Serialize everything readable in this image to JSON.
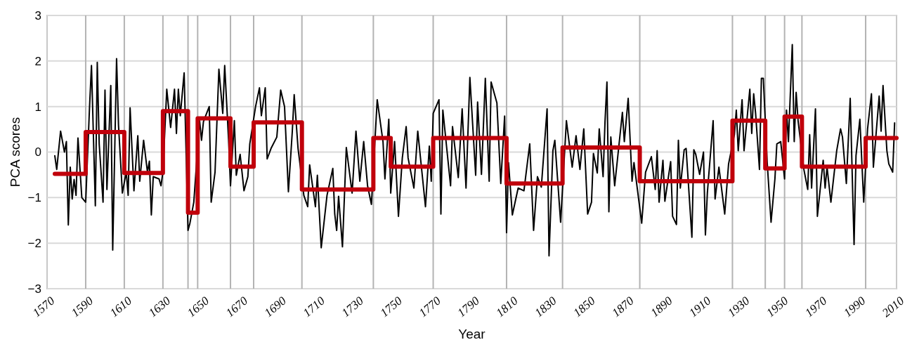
{
  "chart_data": {
    "type": "line",
    "xlabel": "Year",
    "ylabel": "PCA scores",
    "xlim": [
      1570,
      2010
    ],
    "ylim": [
      -3,
      3
    ],
    "xticks": [
      1570,
      1590,
      1610,
      1630,
      1650,
      1670,
      1690,
      1710,
      1730,
      1750,
      1770,
      1790,
      1810,
      1830,
      1850,
      1870,
      1890,
      1910,
      1930,
      1950,
      1970,
      1990,
      2010
    ],
    "yticks": [
      {
        "value": -3,
        "label": "−3"
      },
      {
        "value": -2,
        "label": "−2"
      },
      {
        "value": -1,
        "label": "−1"
      },
      0,
      1,
      2,
      3
    ],
    "grid": "y",
    "marker": "none",
    "ref_lines": [
      {
        "axis": "x",
        "value": 1590,
        "color": "#b3b3b3"
      },
      {
        "axis": "x",
        "value": 1610,
        "color": "#b3b3b3"
      },
      {
        "axis": "x",
        "value": 1630,
        "color": "#b3b3b3"
      },
      {
        "axis": "x",
        "value": 1643,
        "color": "#b3b3b3"
      },
      {
        "axis": "x",
        "value": 1648,
        "color": "#b3b3b3"
      },
      {
        "axis": "x",
        "value": 1665,
        "color": "#b3b3b3"
      },
      {
        "axis": "x",
        "value": 1677,
        "color": "#b3b3b3"
      },
      {
        "axis": "x",
        "value": 1702,
        "color": "#b3b3b3"
      },
      {
        "axis": "x",
        "value": 1739,
        "color": "#b3b3b3"
      },
      {
        "axis": "x",
        "value": 1770,
        "color": "#b3b3b3"
      },
      {
        "axis": "x",
        "value": 1808,
        "color": "#b3b3b3"
      },
      {
        "axis": "x",
        "value": 1837,
        "color": "#b3b3b3"
      },
      {
        "axis": "x",
        "value": 1877,
        "color": "#b3b3b3"
      },
      {
        "axis": "x",
        "value": 1925,
        "color": "#b3b3b3"
      },
      {
        "axis": "x",
        "value": 1942,
        "color": "#b3b3b3"
      },
      {
        "axis": "x",
        "value": 1952,
        "color": "#b3b3b3"
      },
      {
        "axis": "x",
        "value": 1961,
        "color": "#b3b3b3"
      },
      {
        "axis": "x",
        "value": 1994,
        "color": "#b3b3b3"
      }
    ],
    "series": [
      {
        "color": "#000000",
        "x": [
          1574,
          1575,
          1577,
          1579,
          1580,
          1581,
          1582,
          1583,
          1584,
          1585,
          1586,
          1588,
          1590,
          1592,
          1593,
          1595,
          1596,
          1597,
          1599,
          1600,
          1601,
          1603,
          1604,
          1606,
          1607,
          1609,
          1611,
          1612,
          1613,
          1615,
          1617,
          1618,
          1620,
          1622,
          1623,
          1624,
          1625,
          1628,
          1629,
          1630,
          1632,
          1634,
          1636,
          1637,
          1638,
          1639,
          1641,
          1643,
          1644,
          1646,
          1649,
          1650,
          1651,
          1654,
          1655,
          1657,
          1659,
          1661,
          1662,
          1664,
          1665,
          1667,
          1668,
          1670,
          1672,
          1674,
          1675,
          1678,
          1680,
          1681,
          1683,
          1684,
          1686,
          1689,
          1691,
          1693,
          1695,
          1697,
          1698,
          1700,
          1703,
          1705,
          1706,
          1709,
          1710,
          1712,
          1715,
          1718,
          1719,
          1720,
          1721,
          1723,
          1725,
          1728,
          1730,
          1732,
          1734,
          1736,
          1738,
          1741,
          1744,
          1745,
          1747,
          1748,
          1750,
          1752,
          1754,
          1756,
          1757,
          1760,
          1762,
          1766,
          1768,
          1769,
          1770,
          1773,
          1774,
          1775,
          1779,
          1780,
          1783,
          1785,
          1787,
          1789,
          1792,
          1793,
          1795,
          1797,
          1799,
          1800,
          1803,
          1805,
          1807,
          1808,
          1809,
          1811,
          1814,
          1817,
          1820,
          1822,
          1824,
          1826,
          1829,
          1830,
          1832,
          1833,
          1836,
          1839,
          1842,
          1844,
          1846,
          1848,
          1850,
          1852,
          1853,
          1855,
          1856,
          1858,
          1859,
          1860,
          1861,
          1862,
          1864,
          1868,
          1869,
          1871,
          1873,
          1874,
          1878,
          1880,
          1883,
          1885,
          1886,
          1887,
          1889,
          1890,
          1893,
          1894,
          1896,
          1897,
          1898,
          1900,
          1901,
          1904,
          1905,
          1906,
          1908,
          1910,
          1911,
          1912,
          1915,
          1916,
          1918,
          1921,
          1923,
          1926,
          1927,
          1928,
          1930,
          1931,
          1934,
          1935,
          1936,
          1937,
          1939,
          1940,
          1941,
          1943,
          1945,
          1947,
          1948,
          1950,
          1952,
          1953,
          1954,
          1956,
          1957,
          1958,
          1959,
          1962,
          1964,
          1965,
          1966,
          1968,
          1969,
          1972,
          1973,
          1974,
          1976,
          1979,
          1981,
          1982,
          1984,
          1986,
          1988,
          1989,
          1991,
          1993,
          1995,
          1997,
          1998,
          2001,
          2002,
          2003,
          2005,
          2006,
          2008,
          2009
        ],
        "values": [
          -0.08,
          -0.38,
          0.46,
          0,
          0.23,
          -1.6,
          -0.33,
          -1.03,
          -0.6,
          -0.95,
          0.31,
          -1.0,
          -1.1,
          1.0,
          1.9,
          -1.18,
          1.97,
          0.18,
          -1.1,
          1.36,
          -0.82,
          1.46,
          -2.15,
          2.05,
          0.59,
          -0.9,
          -0.44,
          -0.95,
          0.97,
          -0.85,
          0.36,
          -0.64,
          0.26,
          -0.44,
          -0.2,
          -1.38,
          -0.54,
          -0.59,
          -0.74,
          -0.44,
          1.38,
          0.54,
          1.38,
          0.41,
          1.38,
          0.8,
          1.74,
          -1.72,
          -1.56,
          -1.1,
          0.69,
          0.26,
          0.67,
          1.0,
          -1.1,
          -0.44,
          1.82,
          0.85,
          1.9,
          0.28,
          -0.74,
          0.69,
          -0.51,
          -0.05,
          -0.85,
          -0.54,
          0.18,
          1.0,
          1.41,
          0.8,
          1.41,
          -0.15,
          0.08,
          0.33,
          1.36,
          1.0,
          -0.87,
          0.44,
          1.26,
          0.08,
          -0.95,
          -1.2,
          -0.28,
          -1.2,
          -0.51,
          -2.1,
          -0.95,
          -0.36,
          -1.36,
          -1.72,
          -0.97,
          -2.08,
          0.1,
          -0.9,
          0.46,
          -0.64,
          0.23,
          -0.74,
          -1.15,
          1.15,
          0.23,
          -0.59,
          0.72,
          -0.9,
          0.23,
          -1.41,
          -0.13,
          0.56,
          -0.13,
          -0.79,
          0.46,
          -1.2,
          0.13,
          -0.64,
          0.85,
          1.15,
          -1.36,
          0.92,
          -0.74,
          0.56,
          -0.56,
          0.95,
          -0.79,
          1.64,
          -0.51,
          1.1,
          -0.49,
          1.62,
          -0.64,
          1.54,
          1.08,
          -0.69,
          0.79,
          -1.77,
          -0.23,
          -1.38,
          -0.79,
          -0.85,
          0.18,
          -1.72,
          -0.54,
          -0.77,
          0.95,
          -2.28,
          0.03,
          0.26,
          -1.54,
          0.69,
          -0.33,
          0.36,
          -0.38,
          0.51,
          -1.36,
          -1.1,
          -0.03,
          -0.46,
          0.51,
          -0.54,
          0.67,
          1.54,
          -1.31,
          0.33,
          -0.74,
          0.87,
          0.23,
          1.18,
          -0.64,
          -0.23,
          -1.56,
          -0.44,
          -0.1,
          -0.82,
          0.03,
          -1.1,
          -0.18,
          -1.08,
          -0.21,
          -1.41,
          -1.59,
          0.26,
          -0.79,
          0.05,
          0.08,
          -1.87,
          0.05,
          -0.05,
          -0.49,
          0,
          -1.82,
          -0.9,
          0.69,
          -1.03,
          -0.33,
          -1.36,
          -0.26,
          0.38,
          0.92,
          0.03,
          1.15,
          0.03,
          1.38,
          0.41,
          1.28,
          0.85,
          -0.38,
          1.62,
          1.62,
          -0.23,
          -1.54,
          -0.59,
          0.18,
          0.23,
          -0.59,
          0.92,
          0.23,
          2.36,
          0.23,
          1.31,
          0.69,
          -0.38,
          -0.82,
          0.38,
          -0.79,
          0.95,
          -1.41,
          -0.18,
          -0.79,
          -0.33,
          -1.1,
          0.03,
          0.51,
          0.33,
          -0.69,
          1.18,
          -2.03,
          -0.08,
          0.72,
          -1.1,
          0.51,
          1.28,
          -0.33,
          1.23,
          0.46,
          1.46,
          0.03,
          -0.26,
          -0.44,
          0.64
        ]
      },
      {
        "type": "step",
        "color": "#c0000b",
        "x": [
          1574,
          1590,
          1610,
          1630,
          1643,
          1648,
          1665,
          1677,
          1702,
          1739,
          1748,
          1770,
          1808,
          1837,
          1877,
          1925,
          1942,
          1952,
          1961,
          1994,
          2010
        ],
        "values": [
          -0.48,
          0.44,
          -0.46,
          0.9,
          -1.33,
          0.74,
          -0.32,
          0.65,
          -0.82,
          0.31,
          -0.32,
          0.31,
          -0.69,
          0.1,
          -0.64,
          0.69,
          -0.36,
          0.78,
          -0.32,
          0.31,
          0.31
        ]
      }
    ]
  }
}
